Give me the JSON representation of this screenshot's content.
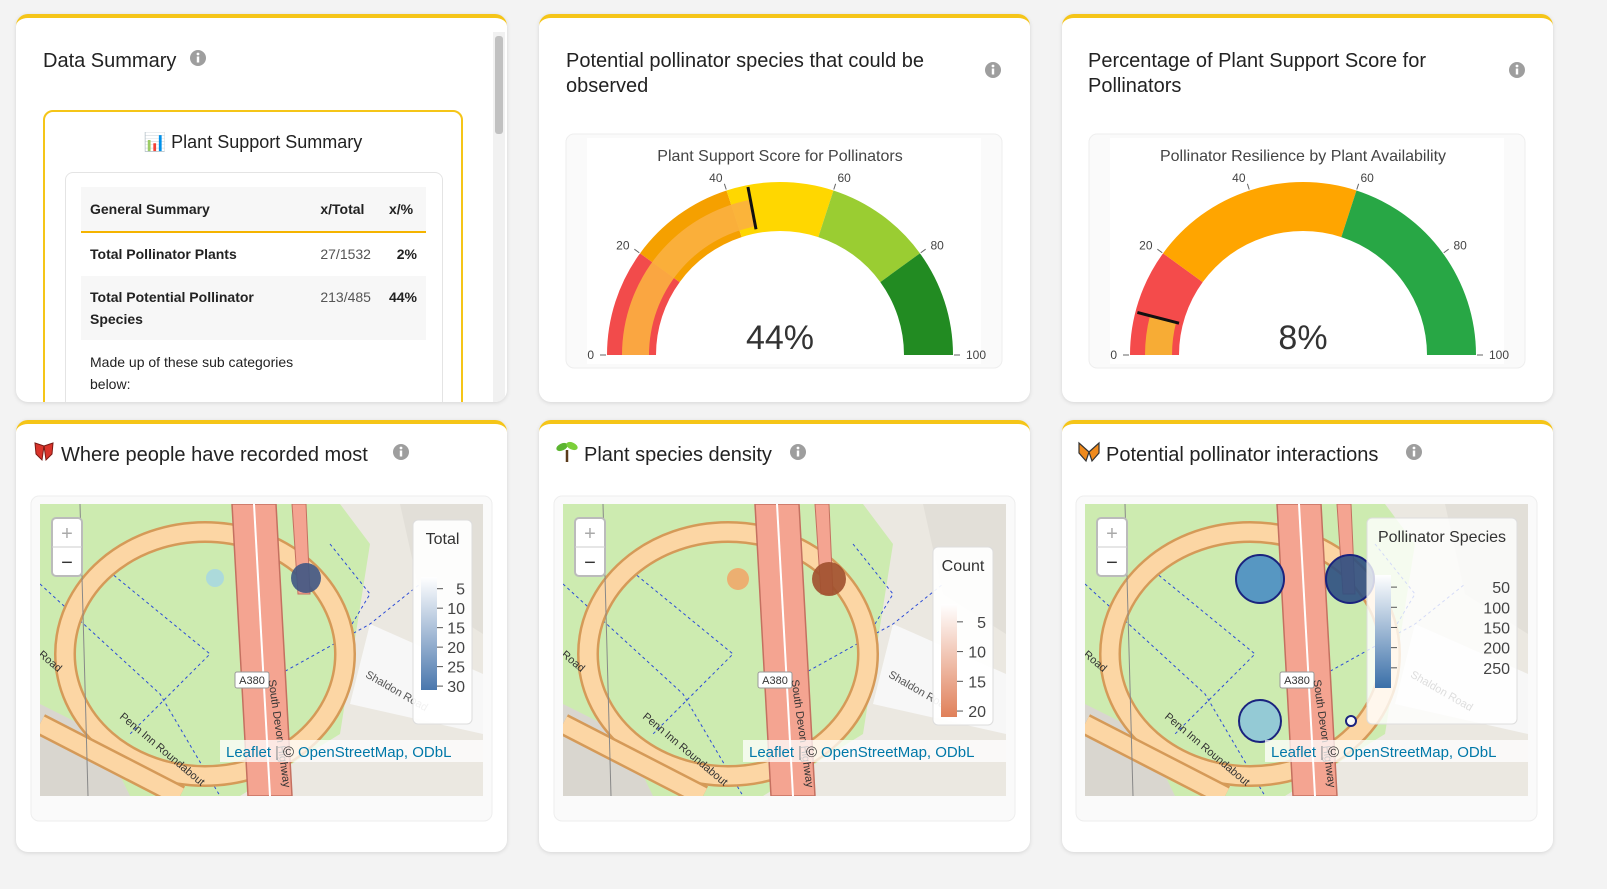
{
  "summary": {
    "title": "Data Summary",
    "subtitle": "📊 Plant Support Summary",
    "table": {
      "header": [
        "General Summary",
        "x/Total",
        "x/%"
      ],
      "rows": [
        [
          "Total Pollinator Plants",
          "27/1532",
          "2%"
        ],
        [
          "Total Potential Pollinator Species",
          "213/485",
          "44%"
        ],
        [
          "Made up of these sub categories below:"
        ]
      ]
    }
  },
  "gauges": [
    {
      "title": "Potential pollinator species that could be observed",
      "chart_title": "Plant Support Score for Pollinators",
      "value": 44,
      "value_label": "44%",
      "threshold": 44,
      "range": [
        0,
        100
      ],
      "ticks": [
        0,
        20,
        40,
        60,
        80,
        100
      ],
      "bar_color": "#fbb040",
      "steps": [
        {
          "range": [
            0,
            20
          ],
          "color": "#f24b4b"
        },
        {
          "range": [
            20,
            40
          ],
          "color": "#f5a000"
        },
        {
          "range": [
            40,
            60
          ],
          "color": "#ffd700"
        },
        {
          "range": [
            60,
            80
          ],
          "color": "#9acd32"
        },
        {
          "range": [
            80,
            100
          ],
          "color": "#228b22"
        }
      ]
    },
    {
      "title": "Percentage of Plant Support Score for Pollinators",
      "chart_title": "Pollinator Resilience by Plant Availability",
      "value": 8,
      "value_label": "8%",
      "threshold": 8,
      "range": [
        0,
        100
      ],
      "ticks": [
        0,
        20,
        40,
        60,
        80,
        100
      ],
      "bar_color": "#f7b733",
      "steps": [
        {
          "range": [
            0,
            20
          ],
          "color": "#f44b4b"
        },
        {
          "range": [
            20,
            60
          ],
          "color": "#ffa500"
        },
        {
          "range": [
            60,
            100
          ],
          "color": "#28a745"
        }
      ]
    }
  ],
  "map_labels": [
    "A380",
    "Penn Inn Roundabout",
    "South Devon Highway",
    "Shaldon Road",
    "Road"
  ],
  "zoom": [
    "+",
    "−"
  ],
  "attribution": [
    "Leaflet",
    "|",
    "©",
    "OpenStreetMap, ODbL"
  ],
  "maps": [
    {
      "title": "Where people have recorded most",
      "legend": {
        "title": "Total",
        "lim": [
          2,
          31
        ],
        "ticks": [
          5,
          10,
          15,
          20,
          25,
          30
        ],
        "colors": [
          "#ffffff",
          "#4a77ad"
        ]
      },
      "points": [
        {
          "value": 3,
          "color": "#a8d8e0"
        },
        {
          "value": 30,
          "color": "#3f5784"
        }
      ]
    },
    {
      "title": "Plant species density",
      "legend": {
        "title": "Count",
        "lim": [
          2,
          21
        ],
        "ticks": [
          5,
          10,
          15,
          20
        ],
        "colors": [
          "#ffffff",
          "#e0805a"
        ]
      },
      "points": [
        {
          "value": 7,
          "color": "#f0a86a"
        },
        {
          "value": 20,
          "color": "#a0502e"
        }
      ]
    },
    {
      "title": "Potential pollinator interactions",
      "legend": {
        "title": "Pollinator Species",
        "lim": [
          20,
          300
        ],
        "ticks": [
          50,
          100,
          150,
          200,
          250
        ],
        "colors": [
          "#ffffff",
          "#3a6fa8"
        ]
      },
      "points": [
        {
          "value": 180,
          "color": "#4a8ec4"
        },
        {
          "value": 260,
          "color": "#2e4f82"
        },
        {
          "value": 100,
          "color": "#8ec6d9"
        },
        {
          "value": 5,
          "color": "#ffffff"
        }
      ]
    }
  ]
}
